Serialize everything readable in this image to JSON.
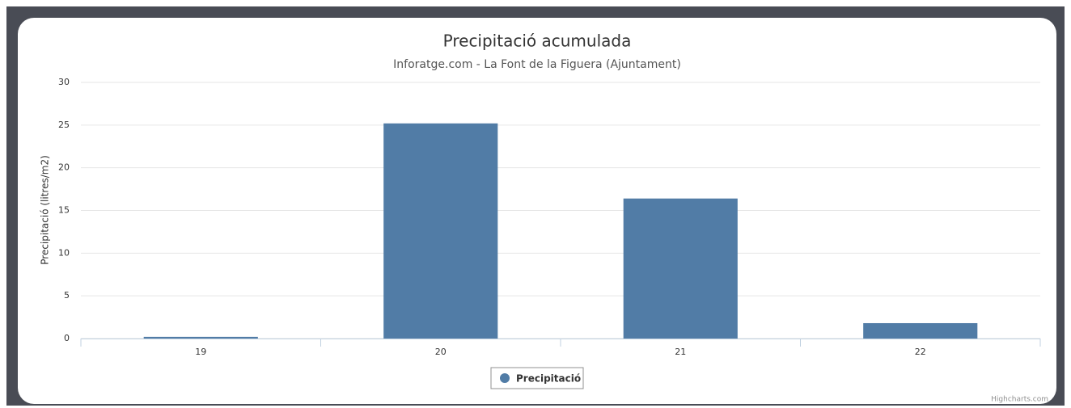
{
  "chart_data": {
    "type": "bar",
    "title": "Precipitació acumulada",
    "subtitle": "Inforatge.com - La Font de la Figuera (Ajuntament)",
    "y_label": "Precipitació (litres/m2)",
    "categories": [
      "19",
      "20",
      "21",
      "22"
    ],
    "series": [
      {
        "name": "Precipitació",
        "color": "#517ca6",
        "values": [
          0.2,
          25.2,
          16.4,
          1.8
        ]
      }
    ],
    "ylim": [
      0,
      30
    ],
    "yticks": [
      0,
      5,
      10,
      15,
      20,
      25,
      30
    ],
    "grid": true,
    "legend": "bottom",
    "credits": "Highcharts.com"
  }
}
